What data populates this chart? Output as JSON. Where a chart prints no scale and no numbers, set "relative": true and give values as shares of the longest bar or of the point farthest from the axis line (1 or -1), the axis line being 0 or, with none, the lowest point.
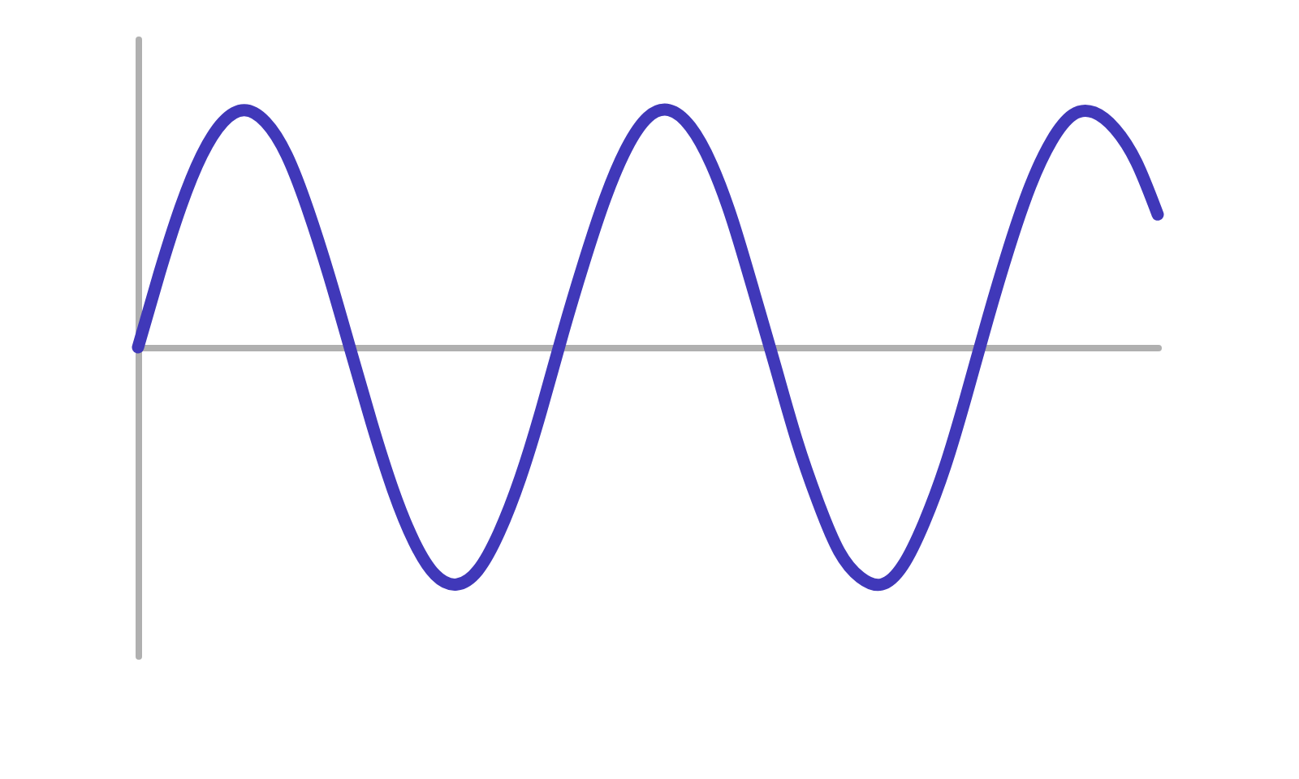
{
  "chart_data": {
    "type": "line",
    "relative": true,
    "grid": false,
    "categories": [
      null,
      null,
      null,
      null,
      null,
      null,
      null,
      null,
      null,
      null,
      null,
      null,
      null,
      null,
      null,
      null,
      null,
      null,
      null,
      null,
      null,
      null,
      null,
      null,
      null,
      null,
      null,
      null,
      null,
      null,
      null,
      null,
      null,
      null,
      null,
      null,
      null,
      null,
      null,
      null,
      null,
      null,
      null,
      null,
      null,
      null,
      null,
      null,
      null
    ],
    "series": [
      {
        "color": "#4038b9",
        "values": [
          0,
          0.31,
          0.59,
          0.81,
          0.95,
          1.0,
          0.95,
          0.81,
          0.58,
          0.3,
          -0.01,
          -0.32,
          -0.6,
          -0.82,
          -0.96,
          -1.0,
          -0.94,
          -0.78,
          -0.55,
          -0.26,
          0.06,
          0.36,
          0.63,
          0.84,
          0.97,
          1.0,
          0.93,
          0.77,
          0.53,
          0.23,
          -0.08,
          -0.39,
          -0.65,
          -0.86,
          -0.97,
          -1.0,
          -0.92,
          -0.74,
          -0.5,
          -0.2,
          0.12,
          0.42,
          0.68,
          0.87,
          0.98,
          0.99,
          0.92,
          0.78,
          0.56
        ]
      }
    ]
  }
}
